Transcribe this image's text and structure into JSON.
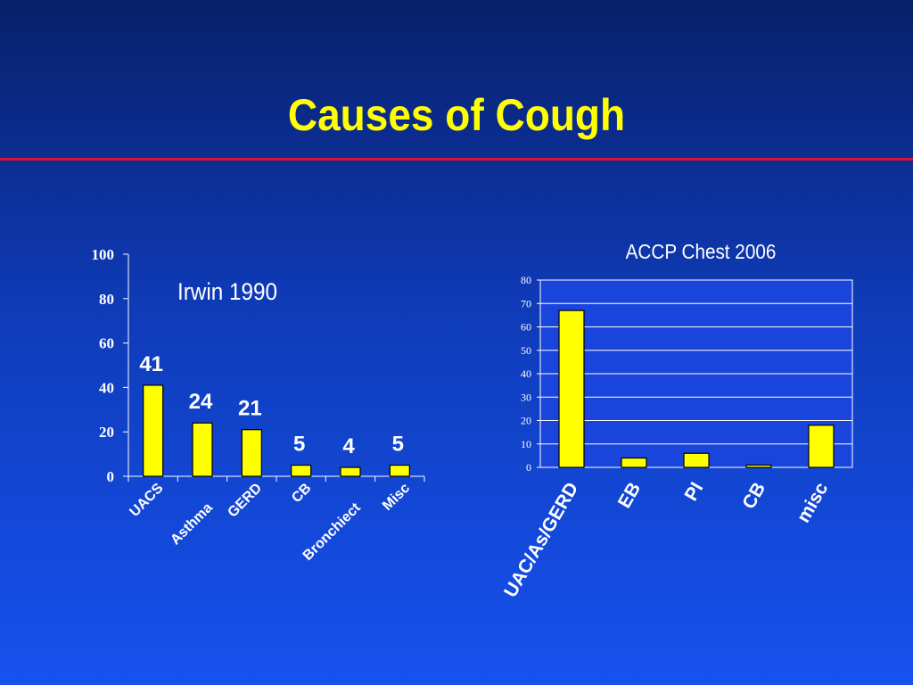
{
  "slide": {
    "title": "Causes of Cough",
    "colors": {
      "bar": "#ffff00",
      "title": "#ffff00",
      "rule": "#e01030",
      "text": "#ffffff",
      "plot_bg": "#1a45dd"
    }
  },
  "chart_data": [
    {
      "type": "bar",
      "title": "Irwin 1990",
      "categories": [
        "UACS",
        "Asthma",
        "GERD",
        "CB",
        "Bronchiect",
        "Misc"
      ],
      "values": [
        41,
        24,
        21,
        5,
        4,
        5
      ],
      "data_labels": [
        "41",
        "24",
        "21",
        "5",
        "4",
        "5"
      ],
      "yticks": [
        "0",
        "20",
        "40",
        "60",
        "80",
        "100"
      ],
      "ylim": [
        0,
        100
      ],
      "xlabel": "",
      "ylabel": "",
      "grid": false
    },
    {
      "type": "bar",
      "title": "ACCP Chest 2006",
      "categories": [
        "UAC/As/GERD",
        "EB",
        "PI",
        "CB",
        "misc"
      ],
      "values": [
        67,
        4,
        6,
        1,
        18
      ],
      "yticks": [
        "0",
        "10",
        "20",
        "30",
        "40",
        "50",
        "60",
        "70",
        "80"
      ],
      "ylim": [
        0,
        80
      ],
      "xlabel": "",
      "ylabel": "",
      "grid": true
    }
  ]
}
